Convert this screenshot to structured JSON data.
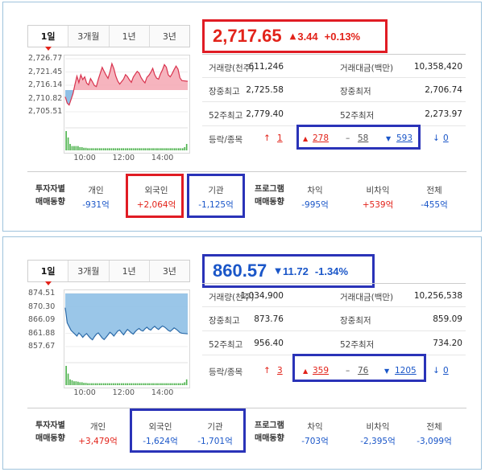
{
  "colors": {
    "red": "#e2231a",
    "blue": "#1a56c8",
    "highlight_red": "#e01c24",
    "highlight_blue": "#2a33b8",
    "kospi_area": "#f4a7b3",
    "kospi_line": "#d9334e",
    "kosdaq_area": "#8fc0e6",
    "kosdaq_line": "#2b6aa8",
    "volume_bar": "#4fb34f"
  },
  "panels": [
    {
      "tabs": [
        "1일",
        "3개월",
        "1년",
        "3년"
      ],
      "active_tab": 0,
      "price": {
        "value": "2,717.65",
        "change_arrow": "▲",
        "change": "3.44",
        "change_pct": "+0.13%",
        "direction": "up"
      },
      "stats": [
        {
          "label1": "거래량(천주)",
          "value1": "611,246",
          "label2": "거래대금(백만)",
          "value2": "10,358,420"
        },
        {
          "label1": "장중최고",
          "value1": "2,725.58",
          "label2": "장중최저",
          "value2": "2,706.74"
        },
        {
          "label1": "52주최고",
          "value1": "2,779.40",
          "label2": "52주최저",
          "value2": "2,273.97"
        }
      ],
      "updown": {
        "label": "등락/종목",
        "upper_limit_icon": "↑",
        "upper_limit": "1",
        "rise_icon": "▲",
        "rise": "278",
        "flat_icon": "–",
        "flat": "58",
        "fall_icon": "▼",
        "fall": "593",
        "lower_limit_icon": "↓",
        "lower_limit": "0"
      },
      "investor": {
        "header_line1": "투자자별",
        "header_line2": "매매동향",
        "individual_label": "개인",
        "individual_value": "-931억",
        "foreign_label": "외국인",
        "foreign_value": "+2,064억",
        "institution_label": "기관",
        "institution_value": "-1,125억",
        "program_line1": "프로그램",
        "program_line2": "매매동향",
        "arbitrage_label": "차익",
        "arbitrage_value": "-995억",
        "nonarbitrage_label": "비차익",
        "nonarbitrage_value": "+539억",
        "total_label": "전체",
        "total_value": "-455억"
      },
      "chart_data": {
        "type": "area",
        "y_ticks": [
          "2,726.77",
          "2,721.45",
          "2,716.14",
          "2,710.82",
          "2,705.51"
        ],
        "y_tick_values": [
          2726.77,
          2721.45,
          2716.14,
          2710.82,
          2705.51
        ],
        "x_ticks": [
          "10:00",
          "12:00",
          "14:00"
        ],
        "baseline": 2714.21,
        "ylim": [
          2705.51,
          2726.77
        ],
        "x": [
          9.0,
          9.1,
          9.2,
          9.3,
          9.4,
          9.5,
          9.6,
          9.7,
          9.8,
          9.9,
          10.0,
          10.1,
          10.2,
          10.3,
          10.4,
          10.5,
          10.6,
          10.7,
          10.8,
          10.9,
          11.0,
          11.1,
          11.2,
          11.3,
          11.4,
          11.5,
          11.6,
          11.7,
          11.8,
          11.9,
          12.0,
          12.1,
          12.2,
          12.3,
          12.4,
          12.5,
          12.6,
          12.7,
          12.8,
          12.9,
          13.0,
          13.1,
          13.2,
          13.3,
          13.4,
          13.5,
          13.6,
          13.7,
          13.8,
          13.9,
          14.0,
          14.1,
          14.2,
          14.3,
          14.4,
          14.5,
          14.6,
          14.7,
          14.8,
          14.9,
          15.0,
          15.3
        ],
        "y": [
          2711.5,
          2709.0,
          2708.2,
          2710.5,
          2712.8,
          2716.5,
          2719.8,
          2717.2,
          2720.3,
          2718.4,
          2719.5,
          2717.0,
          2716.3,
          2718.8,
          2717.5,
          2716.0,
          2715.6,
          2718.5,
          2720.9,
          2723.3,
          2721.7,
          2720.2,
          2718.9,
          2721.5,
          2724.8,
          2722.8,
          2719.8,
          2717.8,
          2716.6,
          2717.6,
          2718.6,
          2720.4,
          2719.6,
          2718.3,
          2717.3,
          2719.4,
          2720.6,
          2721.7,
          2721.0,
          2719.2,
          2718.0,
          2717.1,
          2719.3,
          2720.1,
          2721.3,
          2722.9,
          2720.4,
          2719.0,
          2718.6,
          2720.7,
          2722.3,
          2724.4,
          2723.4,
          2720.3,
          2719.5,
          2720.8,
          2722.4,
          2723.8,
          2722.6,
          2719.1,
          2718.0,
          2717.7
        ],
        "volume": [
          9,
          6,
          3,
          2,
          2,
          2,
          2,
          1.5,
          1.5,
          1.2,
          1.2,
          1,
          1,
          1,
          1,
          1,
          1,
          1,
          1,
          1,
          1,
          1,
          1,
          1,
          1,
          1,
          1,
          1,
          1,
          1,
          1,
          1,
          1,
          1,
          1,
          1,
          1,
          1,
          1,
          1,
          1,
          1,
          1,
          1,
          1,
          1,
          1,
          1,
          1,
          1,
          1,
          1,
          1,
          1,
          1,
          1,
          1,
          1,
          1,
          1,
          1.5,
          3
        ]
      }
    },
    {
      "tabs": [
        "1일",
        "3개월",
        "1년",
        "3년"
      ],
      "active_tab": 0,
      "price": {
        "value": "860.57",
        "change_arrow": "▼",
        "change": "11.72",
        "change_pct": "-1.34%",
        "direction": "down"
      },
      "stats": [
        {
          "label1": "거래량(천주)",
          "value1": "1,034,900",
          "label2": "거래대금(백만)",
          "value2": "10,256,538"
        },
        {
          "label1": "장중최고",
          "value1": "873.76",
          "label2": "장중최저",
          "value2": "859.09"
        },
        {
          "label1": "52주최고",
          "value1": "956.40",
          "label2": "52주최저",
          "value2": "734.20"
        }
      ],
      "updown": {
        "label": "등락/종목",
        "upper_limit_icon": "↑",
        "upper_limit": "3",
        "rise_icon": "▲",
        "rise": "359",
        "flat_icon": "–",
        "flat": "76",
        "fall_icon": "▼",
        "fall": "1205",
        "lower_limit_icon": "↓",
        "lower_limit": "0"
      },
      "investor": {
        "header_line1": "투자자별",
        "header_line2": "매매동향",
        "individual_label": "개인",
        "individual_value": "+3,479억",
        "foreign_label": "외국인",
        "foreign_value": "-1,624억",
        "institution_label": "기관",
        "institution_value": "-1,701억",
        "program_line1": "프로그램",
        "program_line2": "매매동향",
        "arbitrage_label": "차익",
        "arbitrage_value": "-703억",
        "nonarbitrage_label": "비차익",
        "nonarbitrage_value": "-2,395억",
        "total_label": "전체",
        "total_value": "-3,099억"
      },
      "chart_data": {
        "type": "area",
        "y_ticks": [
          "874.51",
          "870.30",
          "866.09",
          "861.88",
          "857.67"
        ],
        "y_tick_values": [
          874.51,
          870.3,
          866.09,
          861.88,
          857.67
        ],
        "x_ticks": [
          "10:00",
          "12:00",
          "14:00"
        ],
        "baseline": 872.29,
        "ylim": [
          857.67,
          874.51
        ],
        "x": [
          9.0,
          9.1,
          9.2,
          9.3,
          9.4,
          9.5,
          9.6,
          9.7,
          9.8,
          9.9,
          10.0,
          10.1,
          10.2,
          10.3,
          10.4,
          10.5,
          10.6,
          10.7,
          10.8,
          10.9,
          11.0,
          11.1,
          11.2,
          11.3,
          11.4,
          11.5,
          11.6,
          11.7,
          11.8,
          11.9,
          12.0,
          12.1,
          12.2,
          12.3,
          12.4,
          12.5,
          12.6,
          12.7,
          12.8,
          12.9,
          13.0,
          13.1,
          13.2,
          13.3,
          13.4,
          13.5,
          13.6,
          13.7,
          13.8,
          13.9,
          14.0,
          14.1,
          14.2,
          14.3,
          14.4,
          14.5,
          14.6,
          14.7,
          14.8,
          14.9,
          15.0,
          15.3
        ],
        "y": [
          870.0,
          865.2,
          864.0,
          862.8,
          862.2,
          861.6,
          861.0,
          862.0,
          861.4,
          860.6,
          861.3,
          861.8,
          861.0,
          860.3,
          859.8,
          860.8,
          861.6,
          862.0,
          861.2,
          860.4,
          859.9,
          860.6,
          861.4,
          862.2,
          861.7,
          861.0,
          861.8,
          862.6,
          862.9,
          862.1,
          861.4,
          862.3,
          863.1,
          862.6,
          862.0,
          861.6,
          862.4,
          863.0,
          863.4,
          862.8,
          862.6,
          863.3,
          863.8,
          863.2,
          862.9,
          863.6,
          864.1,
          863.5,
          863.1,
          863.7,
          864.2,
          863.9,
          863.4,
          862.8,
          862.5,
          863.0,
          863.6,
          863.2,
          862.7,
          862.1,
          861.9,
          861.7
        ],
        "volume": [
          10,
          6,
          3,
          2.5,
          2,
          2,
          1.8,
          1.5,
          1.5,
          1.2,
          1.2,
          1,
          1,
          1,
          1,
          1,
          1,
          1,
          1,
          1,
          1,
          1,
          1,
          1,
          1,
          1,
          1,
          1,
          1,
          1,
          1,
          1,
          1,
          1,
          1,
          1,
          1,
          1,
          1,
          1,
          1,
          1,
          1,
          1,
          1,
          1,
          1,
          1,
          1,
          1,
          1,
          1,
          1,
          1,
          1,
          1,
          1,
          1,
          1,
          1,
          1.5,
          3
        ]
      }
    }
  ]
}
